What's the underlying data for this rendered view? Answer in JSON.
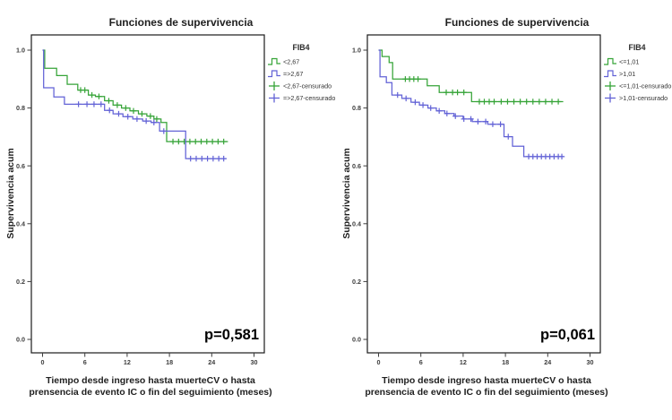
{
  "figure": {
    "background": "#ffffff",
    "text_color": "#1f1f1f",
    "tick_color": "#3c3c3c",
    "frame_color": "#1a1a1a"
  },
  "chart_data": [
    {
      "type": "line",
      "variant": "kaplan-meier-step",
      "title": "Funciones de supervivencia",
      "ylabel": "Supervivencia acum",
      "xlabel_line1": "Tiempo desde ingreso hasta muerteCV o hasta",
      "xlabel_line2": "prensencia de evento IC o fin del seguimiento (meses)",
      "p_label": "p=0,581",
      "legend_title": "FIB4",
      "xticks": [
        0,
        6,
        12,
        18,
        24,
        30
      ],
      "ytick_labels": [
        "0.0",
        "0.2",
        "0.4",
        "0.6",
        "0.8",
        "1.0"
      ],
      "ytick_values": [
        0,
        0.2,
        0.4,
        0.6,
        0.8,
        1.0
      ],
      "xlim": [
        0,
        31.5
      ],
      "ylim": [
        0,
        1.05
      ],
      "grid": false,
      "legend_position": "right",
      "series": [
        {
          "name": "<2,67",
          "censored_name": "<2,67-censurado",
          "color": "#36a438",
          "steps": [
            [
              0,
              1.0
            ],
            [
              0.3,
              0.937
            ],
            [
              2.0,
              0.912
            ],
            [
              3.5,
              0.882
            ],
            [
              5.0,
              0.862
            ],
            [
              6.5,
              0.845
            ],
            [
              7.5,
              0.84
            ],
            [
              8.8,
              0.825
            ],
            [
              10.0,
              0.81
            ],
            [
              11.2,
              0.8
            ],
            [
              12.4,
              0.79
            ],
            [
              13.6,
              0.78
            ],
            [
              14.8,
              0.772
            ],
            [
              15.8,
              0.762
            ],
            [
              16.8,
              0.75
            ],
            [
              17.6,
              0.684
            ]
          ],
          "end": 26.3,
          "censors": [
            5.4,
            6.0,
            7.0,
            8.0,
            9.4,
            10.6,
            11.8,
            12.9,
            14.1,
            15.3,
            16.2,
            18.5,
            19.3,
            20.1,
            20.9,
            21.7,
            22.5,
            23.3,
            24.1,
            24.9,
            25.7
          ]
        },
        {
          "name": "=>2,67",
          "censored_name": "=>2,67-censurado",
          "color": "#6262d6",
          "steps": [
            [
              0,
              1.0
            ],
            [
              0.15,
              0.87
            ],
            [
              1.6,
              0.838
            ],
            [
              3.1,
              0.813
            ],
            [
              8.8,
              0.792
            ],
            [
              10.0,
              0.78
            ],
            [
              11.4,
              0.77
            ],
            [
              12.8,
              0.762
            ],
            [
              14.2,
              0.755
            ],
            [
              15.4,
              0.75
            ],
            [
              16.6,
              0.72
            ],
            [
              20.3,
              0.625
            ]
          ],
          "end": 26.1,
          "censors": [
            5.1,
            6.3,
            7.3,
            8.3,
            9.5,
            10.8,
            12.1,
            13.4,
            14.7,
            15.8,
            17.2,
            21.0,
            21.8,
            22.6,
            23.4,
            24.2,
            25.0,
            25.7
          ]
        }
      ]
    },
    {
      "type": "line",
      "variant": "kaplan-meier-step",
      "title": "Funciones de supervivencia",
      "ylabel": "Supervivencia acum",
      "xlabel_line1": "Tiempo desde ingreso hasta muerteCV o hasta",
      "xlabel_line2": "prensencia de evento IC o fin del seguimiento (meses)",
      "p_label": "p=0,061",
      "legend_title": "FIB4",
      "xticks": [
        0,
        6,
        12,
        18,
        24,
        30
      ],
      "ytick_labels": [
        "0.0",
        "0.2",
        "0.4",
        "0.6",
        "0.8",
        "1.0"
      ],
      "ytick_values": [
        0,
        0.2,
        0.4,
        0.6,
        0.8,
        1.0
      ],
      "xlim": [
        0,
        31.5
      ],
      "ylim": [
        0,
        1.05
      ],
      "grid": false,
      "legend_position": "right",
      "series": [
        {
          "name": "<=1,01",
          "censored_name": "<=1,01-censurado",
          "color": "#36a438",
          "steps": [
            [
              0,
              1.0
            ],
            [
              0.5,
              0.978
            ],
            [
              1.5,
              0.957
            ],
            [
              2.0,
              0.9
            ],
            [
              6.9,
              0.877
            ],
            [
              8.6,
              0.854
            ],
            [
              13.2,
              0.822
            ]
          ],
          "end": 26.2,
          "censors": [
            3.8,
            4.4,
            5.0,
            5.6,
            9.6,
            10.5,
            11.2,
            12.1,
            14.3,
            15.0,
            15.7,
            16.4,
            17.4,
            18.3,
            19.2,
            20.1,
            21.0,
            21.9,
            22.8,
            23.7,
            24.6,
            25.5
          ]
        },
        {
          "name": ">1,01",
          "censored_name": ">1,01-censurado",
          "color": "#6262d6",
          "steps": [
            [
              0,
              1.0
            ],
            [
              0.2,
              0.908
            ],
            [
              1.1,
              0.888
            ],
            [
              1.9,
              0.845
            ],
            [
              3.3,
              0.833
            ],
            [
              4.6,
              0.82
            ],
            [
              5.8,
              0.81
            ],
            [
              7.0,
              0.8
            ],
            [
              8.2,
              0.79
            ],
            [
              9.4,
              0.781
            ],
            [
              10.7,
              0.772
            ],
            [
              12.0,
              0.762
            ],
            [
              13.3,
              0.753
            ],
            [
              15.5,
              0.744
            ],
            [
              17.8,
              0.701
            ],
            [
              19.0,
              0.668
            ],
            [
              20.6,
              0.632
            ]
          ],
          "end": 26.3,
          "censors": [
            2.7,
            3.9,
            5.2,
            6.3,
            7.4,
            8.6,
            9.7,
            10.9,
            12.1,
            13.1,
            14.1,
            15.2,
            16.2,
            17.3,
            18.4,
            21.3,
            21.9,
            22.5,
            23.1,
            23.7,
            24.3,
            24.9,
            25.5,
            26.0
          ]
        }
      ]
    }
  ]
}
